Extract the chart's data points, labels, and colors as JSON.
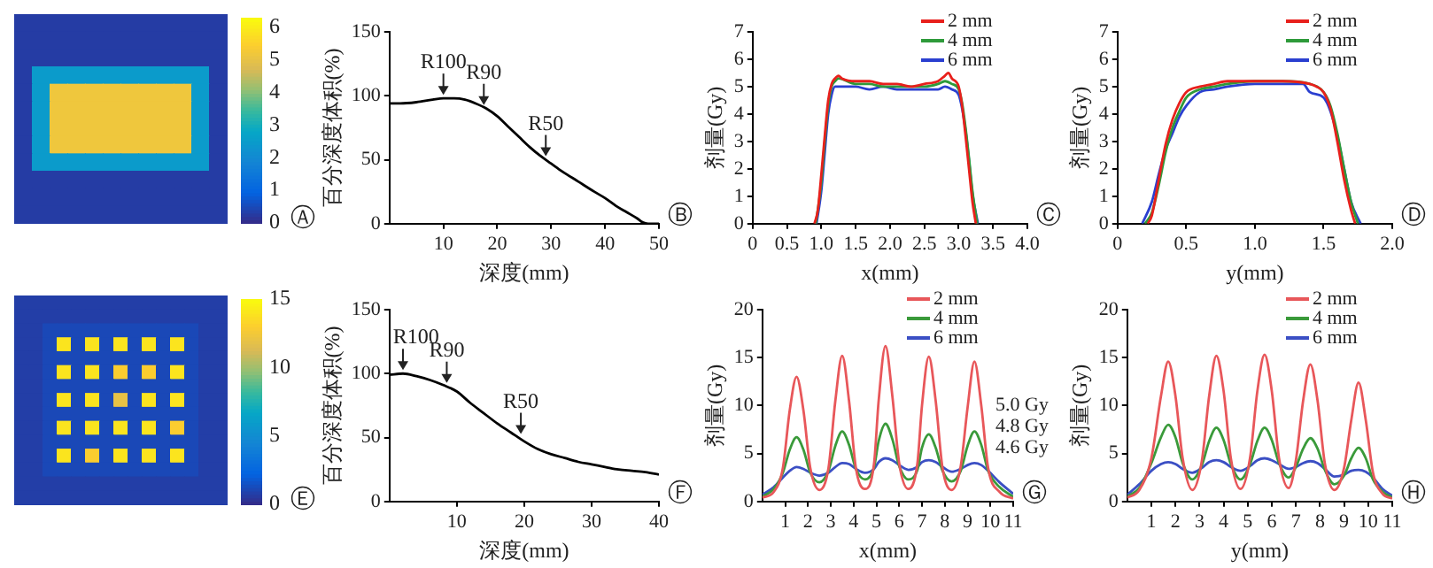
{
  "chart_data": [
    {
      "type": "heatmap",
      "categories": [
        null,
        null,
        null,
        null,
        null,
        null,
        null,
        null,
        null,
        null,
        null,
        null
      ],
      "y_categories": [
        null,
        null,
        null,
        null,
        null,
        null,
        null,
        null,
        null,
        null,
        null,
        null
      ],
      "cells": [
        [
          0.3,
          0.3,
          0.3,
          0.3,
          0.3,
          0.3,
          0.3,
          0.3,
          0.3,
          0.3,
          0.3,
          0.3
        ],
        [
          0.3,
          0.3,
          0.3,
          0.3,
          0.3,
          0.3,
          0.3,
          0.3,
          0.3,
          0.3,
          0.3,
          0.3
        ],
        [
          0.3,
          0.3,
          0.3,
          0.3,
          0.3,
          0.3,
          0.3,
          0.3,
          0.3,
          0.3,
          0.3,
          0.3
        ],
        [
          0.3,
          2.5,
          2.5,
          2.5,
          2.5,
          2.5,
          2.5,
          2.5,
          2.5,
          2.5,
          2.5,
          0.3
        ],
        [
          0.3,
          2.5,
          5.2,
          5.2,
          5.2,
          5.2,
          5.2,
          5.2,
          5.2,
          5.2,
          2.5,
          0.3
        ],
        [
          0.3,
          2.5,
          5.2,
          5.2,
          5.2,
          5.2,
          5.2,
          5.2,
          5.2,
          5.2,
          2.5,
          0.3
        ],
        [
          0.3,
          2.5,
          5.2,
          5.2,
          5.2,
          5.2,
          5.2,
          5.2,
          5.2,
          5.2,
          2.5,
          0.3
        ],
        [
          0.3,
          2.5,
          5.2,
          5.2,
          5.2,
          5.2,
          5.2,
          5.2,
          5.2,
          5.2,
          2.5,
          0.3
        ],
        [
          0.3,
          2.5,
          2.5,
          2.5,
          2.5,
          2.5,
          2.5,
          2.5,
          2.5,
          2.5,
          2.5,
          0.3
        ],
        [
          0.3,
          0.3,
          0.3,
          0.3,
          0.3,
          0.3,
          0.3,
          0.3,
          0.3,
          0.3,
          0.3,
          0.3
        ],
        [
          0.3,
          0.3,
          0.3,
          0.3,
          0.3,
          0.3,
          0.3,
          0.3,
          0.3,
          0.3,
          0.3,
          0.3
        ],
        [
          0.3,
          0.3,
          0.3,
          0.3,
          0.3,
          0.3,
          0.3,
          0.3,
          0.3,
          0.3,
          0.3,
          0.3
        ]
      ],
      "clim": [
        0,
        6.3
      ],
      "cticks": [
        0,
        1,
        2,
        3,
        4,
        5,
        6
      ],
      "annotations": [
        "Ⓐ"
      ]
    },
    {
      "type": "line",
      "xlabel": "深度(mm)",
      "ylabel": "百分深度体积(%)",
      "xlim": [
        0,
        50
      ],
      "xticks": [
        10,
        20,
        30,
        40,
        50
      ],
      "ylim": [
        0,
        150
      ],
      "yticks": [
        0,
        50,
        100,
        150
      ],
      "x": [
        0,
        2,
        5,
        8,
        10,
        12,
        14,
        16,
        18,
        20,
        22,
        24,
        26,
        28,
        30,
        32,
        35,
        38,
        40,
        42,
        44,
        46,
        47,
        48,
        50
      ],
      "series": [
        {
          "color": "#000000",
          "values": [
            94,
            94,
            95,
            97,
            98,
            98,
            97,
            94,
            90,
            84,
            76,
            68,
            60,
            53,
            47,
            41,
            33,
            25,
            20,
            14,
            9,
            4,
            1,
            0,
            0
          ]
        }
      ],
      "annotations": [
        {
          "text": "R100",
          "x": 10,
          "y": 98
        },
        {
          "text": "R90",
          "x": 17.5,
          "y": 90
        },
        {
          "text": "R50",
          "x": 29,
          "y": 50
        },
        "Ⓑ"
      ]
    },
    {
      "type": "line",
      "xlabel": "x(mm)",
      "ylabel": "剂量(Gy)",
      "xlim": [
        0,
        4
      ],
      "xticks": [
        0,
        0.5,
        {
          "value": 1,
          "label": "1.0"
        },
        1.5,
        {
          "value": 2,
          "label": "2.0"
        },
        2.5,
        {
          "value": 3,
          "label": "3.0"
        },
        3.5,
        {
          "value": 4,
          "label": "4.0"
        }
      ],
      "ylim": [
        0,
        7
      ],
      "yticks": [
        0,
        1,
        2,
        3,
        4,
        5,
        6,
        7
      ],
      "legend": "top right",
      "series": [
        {
          "name": "2 mm",
          "color": "#e8201c",
          "x": [
            0.9,
            0.95,
            1.0,
            1.05,
            1.1,
            1.15,
            1.2,
            1.25,
            1.3,
            1.5,
            1.7,
            1.9,
            2.1,
            2.3,
            2.5,
            2.7,
            2.8,
            2.85,
            2.9,
            3.0,
            3.05,
            3.1,
            3.15,
            3.2,
            3.25
          ],
          "values": [
            0,
            0.5,
            1.8,
            3.2,
            4.5,
            5.1,
            5.3,
            5.4,
            5.3,
            5.2,
            5.2,
            5.1,
            5.1,
            5.0,
            5.1,
            5.2,
            5.4,
            5.5,
            5.3,
            5.0,
            4.3,
            3.2,
            2.0,
            0.8,
            0
          ]
        },
        {
          "name": "4 mm",
          "color": "#2e9a3a",
          "x": [
            0.92,
            1.0,
            1.05,
            1.1,
            1.15,
            1.2,
            1.25,
            1.5,
            1.7,
            1.9,
            2.1,
            2.3,
            2.5,
            2.7,
            2.8,
            2.9,
            3.0,
            3.05,
            3.1,
            3.15,
            3.2,
            3.27
          ],
          "values": [
            0,
            1.5,
            3.0,
            4.3,
            5.0,
            5.2,
            5.3,
            5.1,
            5.1,
            5.0,
            5.0,
            5.0,
            5.0,
            5.1,
            5.2,
            5.1,
            4.9,
            4.4,
            3.5,
            2.4,
            1.2,
            0
          ]
        },
        {
          "name": "6 mm",
          "color": "#2a3fd0",
          "x": [
            0.93,
            1.0,
            1.05,
            1.1,
            1.15,
            1.2,
            1.5,
            1.7,
            1.9,
            2.1,
            2.3,
            2.5,
            2.7,
            2.8,
            2.9,
            3.0,
            3.05,
            3.1,
            3.15,
            3.2,
            3.28
          ],
          "values": [
            0,
            1.2,
            2.6,
            4.0,
            4.7,
            5.0,
            5.0,
            4.9,
            5.0,
            4.9,
            4.9,
            4.9,
            4.9,
            5.0,
            4.9,
            4.7,
            4.2,
            3.4,
            2.3,
            1.1,
            0
          ]
        }
      ],
      "annotations": [
        "Ⓒ"
      ]
    },
    {
      "type": "line",
      "xlabel": "y(mm)",
      "ylabel": "剂量(Gy)",
      "xlim": [
        0,
        2
      ],
      "xticks": [
        0,
        0.5,
        {
          "value": 1,
          "label": "1.0"
        },
        1.5,
        {
          "value": 2,
          "label": "2.0"
        }
      ],
      "ylim": [
        0,
        7
      ],
      "yticks": [
        0,
        1,
        2,
        3,
        4,
        5,
        6,
        7
      ],
      "legend": "top right",
      "series": [
        {
          "name": "2 mm",
          "color": "#e8201c",
          "x": [
            0.22,
            0.25,
            0.3,
            0.35,
            0.4,
            0.45,
            0.5,
            0.6,
            0.7,
            0.8,
            1.0,
            1.2,
            1.4,
            1.45,
            1.5,
            1.55,
            1.6,
            1.65,
            1.7,
            1.73
          ],
          "values": [
            0,
            0.3,
            1.6,
            2.9,
            3.8,
            4.4,
            4.8,
            5.0,
            5.1,
            5.2,
            5.2,
            5.2,
            5.1,
            5.0,
            4.8,
            4.2,
            3.0,
            1.6,
            0.5,
            0
          ]
        },
        {
          "name": "4 mm",
          "color": "#2e9a3a",
          "x": [
            0.2,
            0.25,
            0.3,
            0.35,
            0.4,
            0.45,
            0.5,
            0.6,
            0.7,
            0.8,
            1.0,
            1.2,
            1.4,
            1.5,
            1.55,
            1.6,
            1.65,
            1.7,
            1.75
          ],
          "values": [
            0,
            0.4,
            1.4,
            2.6,
            3.5,
            4.1,
            4.6,
            4.9,
            5.0,
            5.1,
            5.2,
            5.2,
            5.1,
            4.8,
            4.3,
            3.3,
            2.0,
            0.8,
            0
          ]
        },
        {
          "name": "6 mm",
          "color": "#2a3fd0",
          "x": [
            0.18,
            0.25,
            0.3,
            0.35,
            0.4,
            0.45,
            0.5,
            0.6,
            0.7,
            0.8,
            1.0,
            1.2,
            1.35,
            1.4,
            1.5,
            1.55,
            1.6,
            1.65,
            1.7,
            1.77
          ],
          "values": [
            0,
            0.8,
            1.8,
            2.7,
            3.3,
            3.9,
            4.3,
            4.8,
            4.9,
            5.0,
            5.1,
            5.1,
            5.1,
            4.8,
            4.6,
            4.1,
            3.2,
            2.0,
            0.8,
            0
          ]
        }
      ],
      "annotations": [
        "Ⓓ"
      ]
    },
    {
      "type": "heatmap",
      "categories": [
        null,
        null,
        null,
        null,
        null,
        null,
        null,
        null,
        null,
        null,
        null,
        null,
        null,
        null,
        null
      ],
      "y_categories": [
        null,
        null,
        null,
        null,
        null,
        null,
        null,
        null,
        null,
        null,
        null,
        null,
        null,
        null,
        null
      ],
      "cells": [
        [
          0.8,
          0.8,
          0.8,
          0.8,
          0.8,
          0.8,
          0.8,
          0.8,
          0.8,
          0.8,
          0.8,
          0.8,
          0.8,
          0.8,
          0.8
        ],
        [
          0.8,
          0.8,
          0.8,
          0.8,
          0.8,
          0.8,
          0.8,
          0.8,
          0.8,
          0.8,
          0.8,
          0.8,
          0.8,
          0.8,
          0.8
        ],
        [
          0.8,
          0.8,
          1.2,
          1.2,
          1.2,
          1.2,
          1.2,
          1.2,
          1.2,
          1.2,
          1.2,
          1.2,
          1.2,
          0.8,
          0.8
        ],
        [
          0.8,
          0.8,
          1.2,
          14,
          1.2,
          14,
          1.2,
          14,
          1.2,
          14,
          1.2,
          14,
          1.2,
          0.8,
          0.8
        ],
        [
          0.8,
          0.8,
          1.2,
          1.2,
          1.2,
          1.2,
          1.2,
          1.2,
          1.2,
          1.2,
          1.2,
          1.2,
          1.2,
          0.8,
          0.8
        ],
        [
          0.8,
          0.8,
          1.2,
          14,
          1.2,
          14,
          1.2,
          13,
          1.2,
          13,
          1.2,
          14,
          1.2,
          0.8,
          0.8
        ],
        [
          0.8,
          0.8,
          1.2,
          1.2,
          1.2,
          1.2,
          1.2,
          1.2,
          1.2,
          1.2,
          1.2,
          1.2,
          1.2,
          0.8,
          0.8
        ],
        [
          0.8,
          0.8,
          1.2,
          14,
          1.2,
          14,
          1.2,
          12,
          1.2,
          14,
          1.2,
          14,
          1.2,
          0.8,
          0.8
        ],
        [
          0.8,
          0.8,
          1.2,
          1.2,
          1.2,
          1.2,
          1.2,
          1.2,
          1.2,
          1.2,
          1.2,
          1.2,
          1.2,
          0.8,
          0.8
        ],
        [
          0.8,
          0.8,
          1.2,
          14,
          1.2,
          14,
          1.2,
          14,
          1.2,
          14,
          1.2,
          13,
          1.2,
          0.8,
          0.8
        ],
        [
          0.8,
          0.8,
          1.2,
          1.2,
          1.2,
          1.2,
          1.2,
          1.2,
          1.2,
          1.2,
          1.2,
          1.2,
          1.2,
          0.8,
          0.8
        ],
        [
          0.8,
          0.8,
          1.2,
          14,
          1.2,
          13,
          1.2,
          14,
          1.2,
          14,
          1.2,
          14,
          1.2,
          0.8,
          0.8
        ],
        [
          0.8,
          0.8,
          1.2,
          1.2,
          1.2,
          1.2,
          1.2,
          1.2,
          1.2,
          1.2,
          1.2,
          1.2,
          1.2,
          0.8,
          0.8
        ],
        [
          0.8,
          0.8,
          0.8,
          0.8,
          0.8,
          0.8,
          0.8,
          0.8,
          0.8,
          0.8,
          0.8,
          0.8,
          0.8,
          0.8,
          0.8
        ],
        [
          0.8,
          0.8,
          0.8,
          0.8,
          0.8,
          0.8,
          0.8,
          0.8,
          0.8,
          0.8,
          0.8,
          0.8,
          0.8,
          0.8,
          0.8
        ]
      ],
      "clim": [
        0,
        15
      ],
      "cticks": [
        0,
        5,
        10,
        15
      ],
      "annotations": [
        "Ⓔ"
      ]
    },
    {
      "type": "line",
      "xlabel": "深度(mm)",
      "ylabel": "百分深度体积(%)",
      "xlim": [
        0,
        40
      ],
      "xticks": [
        10,
        20,
        30,
        40
      ],
      "ylim": [
        0,
        150
      ],
      "yticks": [
        0,
        50,
        100,
        150
      ],
      "x": [
        0,
        2,
        4,
        6,
        8,
        10,
        12,
        14,
        16,
        18,
        20,
        22,
        24,
        26,
        28,
        30,
        32,
        34,
        36,
        38,
        40
      ],
      "series": [
        {
          "color": "#000000",
          "values": [
            99,
            100,
            98,
            95,
            91,
            86,
            77,
            69,
            61,
            54,
            47,
            41,
            37,
            34,
            31,
            29,
            27,
            25,
            24,
            23,
            21
          ]
        }
      ],
      "annotations": [
        {
          "text": "R100",
          "x": 2,
          "y": 100
        },
        {
          "text": "R90",
          "x": 8.5,
          "y": 90
        },
        {
          "text": "R50",
          "x": 19.5,
          "y": 50
        },
        "Ⓕ"
      ]
    },
    {
      "type": "line",
      "xlabel": "x(mm)",
      "ylabel": "剂量(Gy)",
      "xlim": [
        0,
        11
      ],
      "xticks": [
        1,
        2,
        3,
        4,
        5,
        6,
        7,
        8,
        9,
        10,
        11
      ],
      "ylim": [
        0,
        20
      ],
      "yticks": [
        0,
        5,
        10,
        15,
        20
      ],
      "legend": "top right",
      "x": [
        0,
        0.5,
        0.9,
        1.2,
        1.5,
        1.8,
        2.1,
        2.5,
        2.9,
        3.2,
        3.5,
        3.8,
        4.1,
        4.5,
        4.9,
        5.1,
        5.4,
        5.7,
        6.0,
        6.4,
        6.8,
        7.0,
        7.3,
        7.6,
        7.9,
        8.3,
        8.7,
        9.0,
        9.3,
        9.6,
        9.9,
        10.4,
        11
      ],
      "series": [
        {
          "name": "2 mm",
          "color": "#e8575a",
          "values": [
            0.4,
            1.0,
            3.5,
            9.5,
            13,
            9.5,
            3.5,
            1.2,
            3.5,
            10.5,
            15.2,
            10.5,
            3.5,
            1.3,
            4,
            10.5,
            16.2,
            11,
            4,
            1.3,
            4,
            10,
            15.1,
            10.5,
            3.5,
            1.2,
            3.7,
            9.8,
            14.6,
            10,
            3.5,
            1,
            0.3
          ]
        },
        {
          "name": "4 mm",
          "color": "#3a9a3a",
          "values": [
            0.5,
            1.3,
            3.0,
            5.4,
            6.7,
            5.4,
            3.0,
            2.0,
            3.2,
            5.8,
            7.3,
            5.9,
            3.4,
            2.3,
            3.6,
            6.3,
            8.1,
            6.5,
            3.7,
            2.3,
            3.3,
            5.6,
            7.0,
            5.6,
            3.2,
            2.1,
            3.2,
            5.8,
            7.3,
            5.9,
            3.2,
            1.5,
            0.5
          ]
        },
        {
          "name": "6 mm",
          "color": "#3b4fc4",
          "values": [
            0.7,
            1.5,
            2.5,
            3.2,
            3.6,
            3.4,
            3.0,
            2.7,
            3.0,
            3.6,
            4.0,
            3.9,
            3.4,
            3.0,
            3.4,
            4.1,
            4.5,
            4.3,
            3.8,
            3.3,
            3.6,
            4.1,
            4.3,
            4.1,
            3.6,
            3.1,
            3.4,
            3.8,
            4.0,
            3.8,
            3.2,
            2.0,
            0.8
          ]
        }
      ],
      "annotations": [
        "5.0 Gy",
        "4.8 Gy",
        "4.6 Gy",
        "Ⓖ"
      ]
    },
    {
      "type": "line",
      "xlabel": "y(mm)",
      "ylabel": "剂量(Gy)",
      "xlim": [
        0,
        11
      ],
      "xticks": [
        1,
        2,
        3,
        4,
        5,
        6,
        7,
        8,
        9,
        10,
        11
      ],
      "ylim": [
        0,
        20
      ],
      "yticks": [
        0,
        5,
        10,
        15,
        20
      ],
      "legend": "top right",
      "x": [
        0,
        0.5,
        1.0,
        1.4,
        1.7,
        2.0,
        2.3,
        2.7,
        3.1,
        3.4,
        3.7,
        4.0,
        4.3,
        4.7,
        5.1,
        5.4,
        5.7,
        6.0,
        6.3,
        6.7,
        7.0,
        7.3,
        7.6,
        7.9,
        8.2,
        8.6,
        9.0,
        9.3,
        9.6,
        9.9,
        10.2,
        10.6,
        11
      ],
      "series": [
        {
          "name": "2 mm",
          "color": "#e8575a",
          "values": [
            0.4,
            1.2,
            4.5,
            11,
            14.6,
            11,
            4.5,
            1.2,
            4.3,
            11,
            15.2,
            11.5,
            4.5,
            1.3,
            4.6,
            11.5,
            15.3,
            11.5,
            4.5,
            1.4,
            4.3,
            10.5,
            14.3,
            10.5,
            4,
            1.2,
            3.5,
            8.5,
            12.4,
            8.5,
            3,
            0.8,
            0.3
          ]
        },
        {
          "name": "4 mm",
          "color": "#3a9a3a",
          "values": [
            0.5,
            1.4,
            4.0,
            6.7,
            8.0,
            6.7,
            4.0,
            2.3,
            3.8,
            6.3,
            7.7,
            6.4,
            3.9,
            2.3,
            3.9,
            6.3,
            7.7,
            6.4,
            4.0,
            2.5,
            3.6,
            5.5,
            6.6,
            5.5,
            3.3,
            1.8,
            2.7,
            4.5,
            5.6,
            4.5,
            2.3,
            1.0,
            0.4
          ]
        },
        {
          "name": "6 mm",
          "color": "#3b4fc4",
          "values": [
            0.7,
            1.8,
            3.2,
            3.9,
            4.1,
            3.9,
            3.4,
            3.0,
            3.5,
            4.1,
            4.3,
            4.1,
            3.6,
            3.2,
            3.7,
            4.3,
            4.5,
            4.3,
            3.9,
            3.4,
            3.6,
            4.0,
            4.2,
            4.0,
            3.4,
            2.6,
            2.8,
            3.2,
            3.3,
            3.1,
            2.5,
            1.3,
            0.6
          ]
        }
      ],
      "annotations": [
        "Ⓗ"
      ]
    }
  ]
}
